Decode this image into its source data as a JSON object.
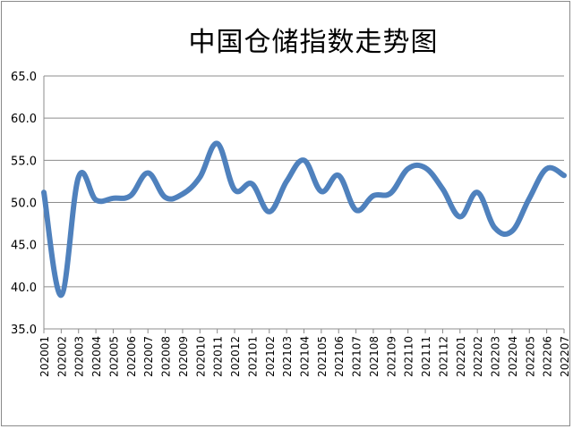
{
  "chart_data": {
    "type": "line",
    "title": "中国仓储指数走势图",
    "xlabel": "",
    "ylabel": "",
    "ylim": [
      35.0,
      65.0
    ],
    "yticks": [
      "35.0",
      "40.0",
      "45.0",
      "50.0",
      "55.0",
      "60.0",
      "65.0"
    ],
    "grid": true,
    "legend": "none",
    "line_color": "#4f81bd",
    "categories": [
      "202001",
      "202002",
      "202003",
      "202004",
      "202005",
      "202006",
      "202007",
      "202008",
      "202009",
      "202010",
      "202011",
      "202012",
      "202101",
      "202102",
      "202103",
      "202104",
      "202105",
      "202106",
      "202107",
      "202108",
      "202109",
      "202110",
      "202111",
      "202112",
      "202201",
      "202202",
      "202203",
      "202204",
      "202205",
      "202206",
      "202207"
    ],
    "series": [
      {
        "name": "",
        "values": [
          51.2,
          39.0,
          53.0,
          50.3,
          50.5,
          50.8,
          53.5,
          50.6,
          51.0,
          53.0,
          57.0,
          51.5,
          52.2,
          48.9,
          52.5,
          55.0,
          51.3,
          53.2,
          49.1,
          50.8,
          51.1,
          54.0,
          54.1,
          51.6,
          48.3,
          51.2,
          47.0,
          46.6,
          50.5,
          54.0,
          53.2
        ]
      }
    ]
  }
}
